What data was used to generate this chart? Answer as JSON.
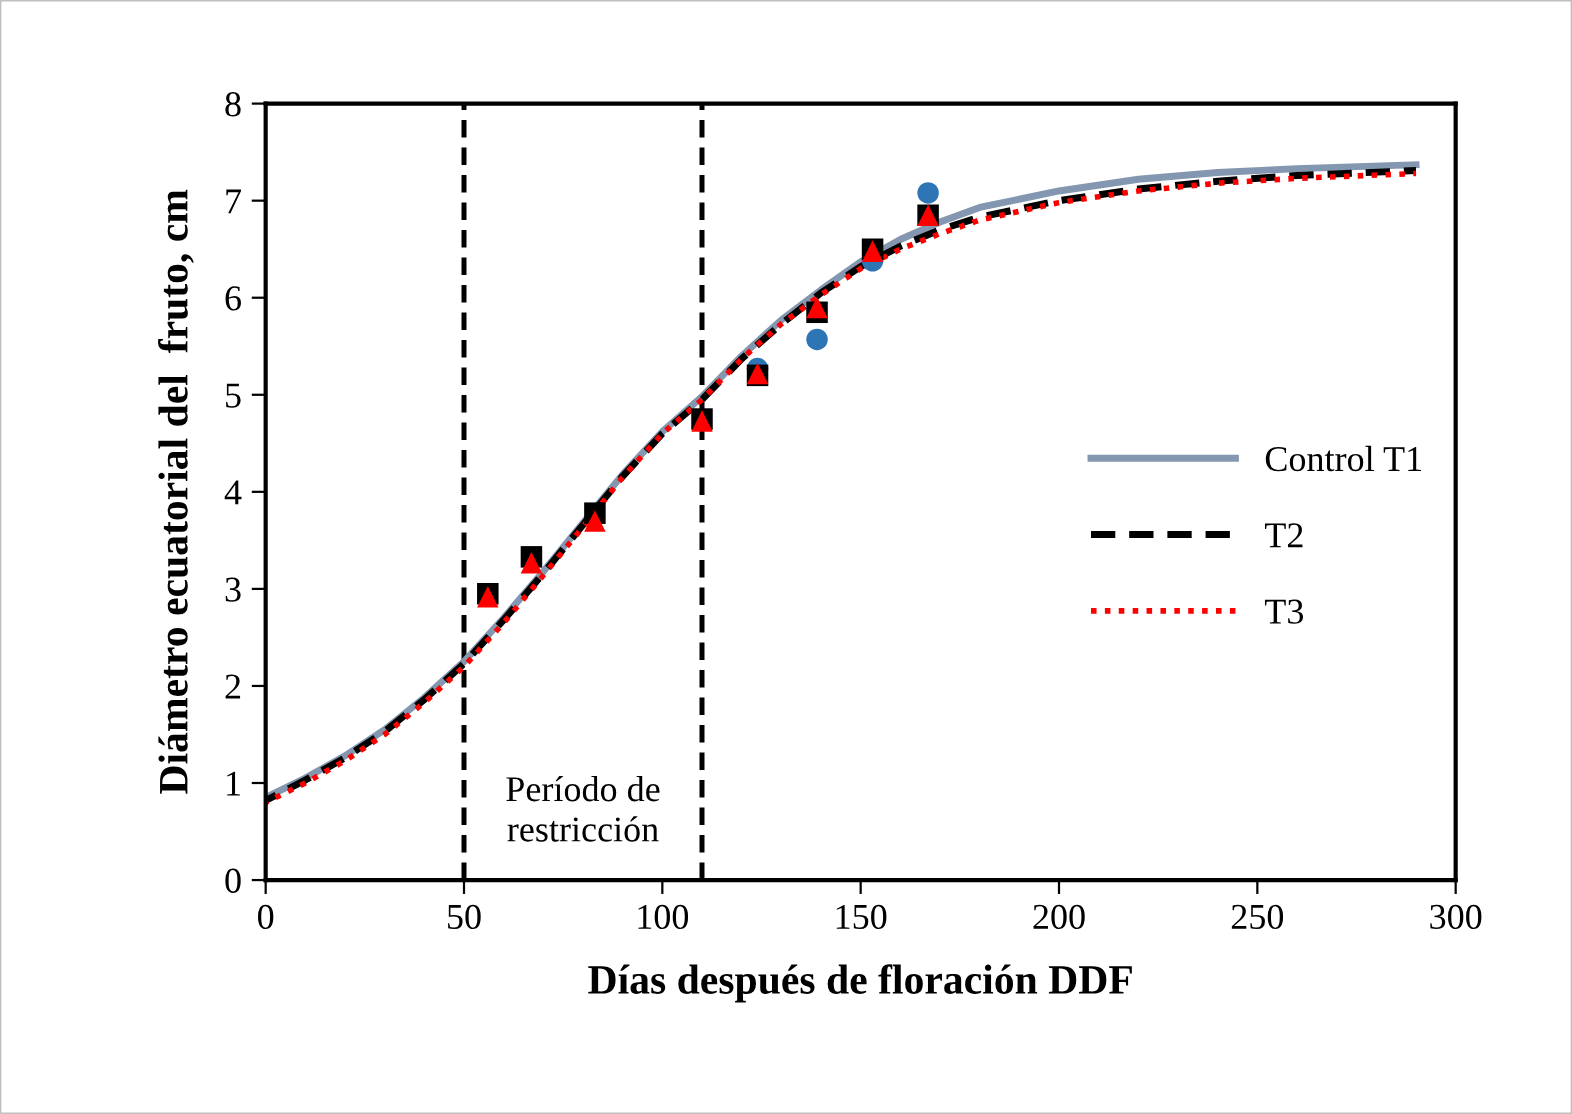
{
  "chart_data": {
    "type": "line",
    "xlabel": "Días después de floración DDF",
    "ylabel": "Diámetro ecuatorial del  fruto, cm",
    "xlim": [
      0,
      300
    ],
    "ylim": [
      0,
      8
    ],
    "xticks": [
      0,
      50,
      100,
      150,
      200,
      250,
      300
    ],
    "yticks": [
      0,
      1,
      2,
      3,
      4,
      5,
      6,
      7,
      8
    ],
    "grid": false,
    "legend": "right",
    "annotations": [
      "Período de\nrestricción"
    ],
    "ref_lines": [
      {
        "axis": "x",
        "value": 50,
        "color": "#000000",
        "line_style": "dashed"
      },
      {
        "axis": "x",
        "value": 110,
        "color": "#000000",
        "line_style": "dashed"
      }
    ],
    "series": [
      {
        "type": "scatter",
        "marker": "circle",
        "color": "#2e75b6",
        "x": [
          124,
          139,
          153,
          167
        ],
        "values": [
          5.27,
          5.57,
          6.38,
          7.08
        ]
      },
      {
        "type": "scatter",
        "marker": "square",
        "color": "#000000",
        "x": [
          56,
          67,
          83,
          110,
          124,
          139,
          153,
          167
        ],
        "values": [
          2.95,
          3.33,
          3.78,
          4.75,
          5.2,
          5.85,
          6.5,
          6.85
        ]
      },
      {
        "type": "scatter",
        "marker": "triangle",
        "color": "#ff0000",
        "x": [
          56,
          67,
          83,
          110,
          124,
          139,
          153,
          167
        ],
        "values": [
          2.92,
          3.27,
          3.7,
          4.73,
          5.22,
          5.9,
          6.48,
          6.85
        ]
      },
      {
        "name": "Control T1",
        "color": "#8497b0",
        "line_style": "solid",
        "x": [
          0,
          10,
          20,
          30,
          40,
          50,
          60,
          70,
          80,
          90,
          100,
          110,
          120,
          130,
          140,
          150,
          160,
          170,
          180,
          200,
          220,
          240,
          260,
          290
        ],
        "values": [
          0.85,
          1.05,
          1.28,
          1.55,
          1.88,
          2.25,
          2.7,
          3.18,
          3.68,
          4.18,
          4.62,
          4.98,
          5.4,
          5.77,
          6.08,
          6.37,
          6.6,
          6.78,
          6.93,
          7.1,
          7.22,
          7.29,
          7.33,
          7.37
        ]
      },
      {
        "name": "T2",
        "color": "#000000",
        "line_style": "dashed",
        "x": [
          0,
          10,
          20,
          30,
          40,
          50,
          60,
          70,
          80,
          90,
          100,
          110,
          120,
          130,
          140,
          150,
          160,
          170,
          180,
          200,
          220,
          240,
          260,
          290
        ],
        "values": [
          0.82,
          1.03,
          1.26,
          1.53,
          1.86,
          2.23,
          2.68,
          3.16,
          3.66,
          4.16,
          4.6,
          4.95,
          5.37,
          5.73,
          6.05,
          6.32,
          6.53,
          6.7,
          6.83,
          7.0,
          7.12,
          7.2,
          7.26,
          7.31
        ]
      },
      {
        "name": "T3",
        "color": "#ff0000",
        "line_style": "dotted",
        "x": [
          0,
          10,
          20,
          30,
          40,
          50,
          60,
          70,
          80,
          90,
          100,
          110,
          120,
          130,
          140,
          150,
          160,
          170,
          180,
          200,
          220,
          240,
          260,
          290
        ],
        "values": [
          0.8,
          1.0,
          1.23,
          1.5,
          1.83,
          2.2,
          2.65,
          3.14,
          3.64,
          4.15,
          4.6,
          4.95,
          5.37,
          5.73,
          6.03,
          6.3,
          6.5,
          6.66,
          6.8,
          6.98,
          7.1,
          7.18,
          7.23,
          7.28
        ]
      }
    ]
  }
}
